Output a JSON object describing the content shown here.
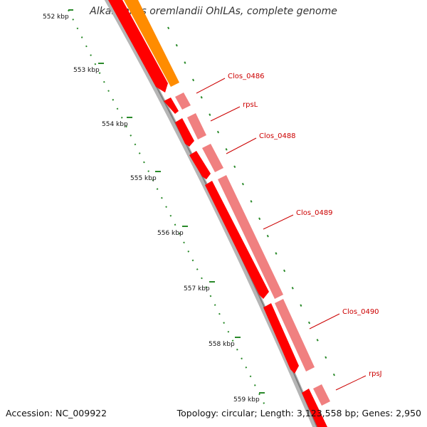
{
  "title": "Alkaliphilus oremlandii OhILAs, complete genome",
  "accession": "Accession: NC_009922",
  "topology_info": "Topology: circular; Length: 3,123,558 bp; Genes: 2,950",
  "scale": {
    "unit": "kbp",
    "ticks": [
      {
        "label": "552 kbp"
      },
      {
        "label": "553 kbp"
      },
      {
        "label": "554 kbp"
      },
      {
        "label": "555 kbp"
      },
      {
        "label": "556 kbp"
      },
      {
        "label": "557 kbp"
      },
      {
        "label": "558 kbp"
      },
      {
        "label": "559 kbp"
      }
    ]
  },
  "genes": [
    {
      "name": "Clos_0486"
    },
    {
      "name": "rpsL"
    },
    {
      "name": "Clos_0488"
    },
    {
      "name": "Clos_0489"
    },
    {
      "name": "Clos_0490"
    },
    {
      "name": "rpsJ"
    }
  ],
  "colors": {
    "backbone": "#999999",
    "cds_forward": "#ff0000",
    "cds_light": "#f08080",
    "cds_orange": "#ff8c00",
    "tick_green": "#2a8a2a",
    "label_red": "#cc0000"
  }
}
